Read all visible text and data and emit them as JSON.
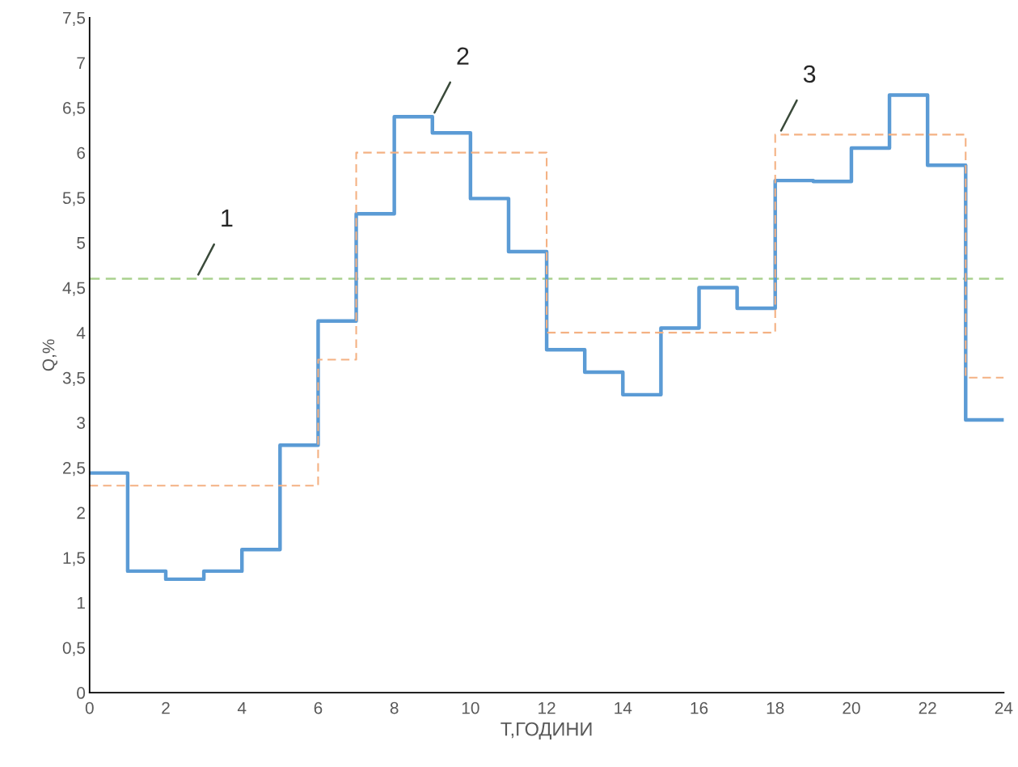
{
  "chart_data": {
    "type": "step",
    "xlabel": "Т,ГОДИНИ",
    "ylabel": "Q,%",
    "xlim": [
      0,
      24
    ],
    "ylim": [
      0,
      7.5
    ],
    "xticks": [
      0,
      2,
      4,
      6,
      8,
      10,
      12,
      14,
      16,
      18,
      20,
      22,
      24
    ],
    "yticks": [
      0,
      {
        "value": 0.5,
        "label": "0,5"
      },
      1,
      {
        "value": 1.5,
        "label": "1,5"
      },
      2,
      {
        "value": 2.5,
        "label": "2,5"
      },
      3,
      {
        "value": 3.5,
        "label": "3,5"
      },
      4,
      {
        "value": 4.5,
        "label": "4,5"
      },
      5,
      {
        "value": 5.5,
        "label": "5,5"
      },
      6,
      {
        "value": 6.5,
        "label": "6,5"
      },
      7,
      {
        "value": 7.5,
        "label": "7,5"
      }
    ],
    "grid": false,
    "legend": false,
    "series": [
      {
        "color": "#5b9bd5",
        "line_style": "solid",
        "x": [
          0,
          1,
          2,
          3,
          4,
          5,
          6,
          7,
          8,
          9,
          10,
          11,
          12,
          13,
          14,
          15,
          16,
          17,
          18,
          19,
          20,
          21,
          22,
          23,
          24
        ],
        "values": [
          2.44,
          1.35,
          1.26,
          1.35,
          1.59,
          2.75,
          4.13,
          5.32,
          6.4,
          6.22,
          5.49,
          4.9,
          3.81,
          3.56,
          3.31,
          4.05,
          4.5,
          4.27,
          5.69,
          5.68,
          6.05,
          6.64,
          5.86,
          3.03,
          3.03
        ]
      },
      {
        "color": "#f4b183",
        "line_style": "dashed",
        "x": [
          0,
          6,
          7,
          12,
          18,
          23,
          24
        ],
        "values": [
          2.3,
          3.7,
          6.0,
          4.0,
          6.2,
          3.5,
          3.5
        ]
      }
    ],
    "ref_lines": [
      {
        "axis": "y",
        "value": 4.6,
        "color": "#a9d18e",
        "line_style": "dashed"
      }
    ],
    "annotations": [
      {
        "text": "1",
        "x": 2.8,
        "y": 4.6
      },
      {
        "text": "2",
        "x": 9,
        "y": 6.4
      },
      {
        "text": "3",
        "x": 18.1,
        "y": 6.2
      }
    ]
  }
}
